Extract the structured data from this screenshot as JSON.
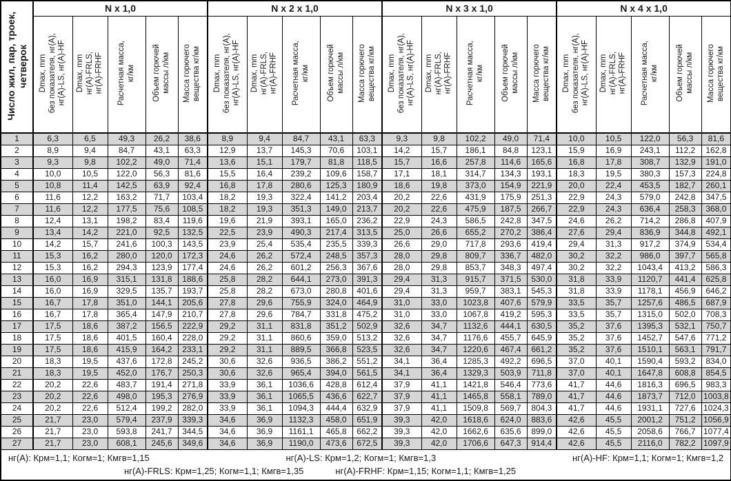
{
  "table": {
    "row_header": "Число жил, пар, троек,\nчетверок",
    "groups": [
      "N x 1,0",
      "N x 2 x 1,0",
      "N x 3 x 1,0",
      "N x 4 x 1,0"
    ],
    "sub_headers": [
      "Dmax, mm\nбез показателя, нг(А),\nнг(А)-LS, нг(А)-HF",
      "Dmax, mm\nнг(А)-FRLS,\nнг(А)-FRHF",
      "Расчетная масса,\nкг/км",
      "Объем горючей\nмассы л/км",
      "Масса горючего\nвещества кг/км"
    ],
    "rows": [
      [
        "1",
        "6,3",
        "6,5",
        "49,3",
        "26,2",
        "38,6",
        "8,9",
        "9,4",
        "84,7",
        "43,1",
        "63,3",
        "9,3",
        "9,8",
        "102,2",
        "49,0",
        "71,4",
        "10,0",
        "10,5",
        "122,0",
        "56,3",
        "81,6"
      ],
      [
        "2",
        "8,9",
        "9,4",
        "84,7",
        "43,1",
        "63,3",
        "12,9",
        "13,7",
        "145,3",
        "70,6",
        "103,1",
        "14,2",
        "15,7",
        "186,1",
        "84,8",
        "123,1",
        "15,9",
        "16,9",
        "243,1",
        "112,2",
        "162,8"
      ],
      [
        "3",
        "9,3",
        "9,8",
        "102,2",
        "49,0",
        "71,4",
        "13,6",
        "15,1",
        "179,7",
        "81,8",
        "118,5",
        "15,7",
        "16,6",
        "257,8",
        "114,6",
        "165,6",
        "16,8",
        "17,8",
        "308,7",
        "132,9",
        "191,0"
      ],
      [
        "4",
        "10,0",
        "10,5",
        "122,0",
        "56,3",
        "81,6",
        "15,5",
        "16,4",
        "239,2",
        "109,6",
        "158,7",
        "17,1",
        "18,1",
        "314,7",
        "134,3",
        "193,1",
        "18,3",
        "19,5",
        "380,3",
        "157,3",
        "224,8"
      ],
      [
        "5",
        "10,8",
        "11,4",
        "142,5",
        "63,9",
        "92,4",
        "16,8",
        "17,8",
        "280,6",
        "125,3",
        "180,9",
        "18,6",
        "19,8",
        "373,0",
        "154,9",
        "221,9",
        "20,0",
        "22,4",
        "453,5",
        "182,7",
        "260,1"
      ],
      [
        "6",
        "11,6",
        "12,2",
        "163,2",
        "71,7",
        "103,4",
        "18,2",
        "19,3",
        "322,4",
        "141,2",
        "203,4",
        "20,2",
        "22,6",
        "431,9",
        "175,9",
        "251,3",
        "22,9",
        "24,3",
        "579,0",
        "242,8",
        "347,5"
      ],
      [
        "7",
        "11,6",
        "12,2",
        "177,5",
        "75,6",
        "108,5",
        "18,2",
        "19,3",
        "351,3",
        "149,0",
        "213,7",
        "20,2",
        "22,6",
        "475,9",
        "187,5",
        "266,7",
        "22,9",
        "24,3",
        "636,4",
        "258,3",
        "368,0"
      ],
      [
        "8",
        "12,4",
        "13,1",
        "198,2",
        "83,4",
        "119,6",
        "19,6",
        "21,9",
        "393,1",
        "165,0",
        "236,2",
        "22,9",
        "24,3",
        "586,5",
        "242,8",
        "347,5",
        "24,6",
        "26,2",
        "714,2",
        "286,8",
        "407,9"
      ],
      [
        "9",
        "13,4",
        "14,2",
        "221,0",
        "92,5",
        "132,5",
        "22,5",
        "23,9",
        "490,3",
        "217,4",
        "313,5",
        "25,0",
        "26,6",
        "655,2",
        "270,2",
        "386,4",
        "27,6",
        "29,4",
        "836,9",
        "344,8",
        "492,1"
      ],
      [
        "10",
        "14,2",
        "15,7",
        "241,6",
        "100,3",
        "143,5",
        "23,9",
        "25,4",
        "535,4",
        "235,5",
        "339,3",
        "26,6",
        "29,0",
        "717,8",
        "293,6",
        "419,4",
        "29,4",
        "31,3",
        "917,2",
        "374,9",
        "534,4"
      ],
      [
        "11",
        "15,3",
        "16,2",
        "280,0",
        "120,0",
        "172,3",
        "24,6",
        "26,2",
        "572,4",
        "248,5",
        "357,3",
        "28,0",
        "29,8",
        "809,7",
        "336,7",
        "482,0",
        "30,2",
        "32,2",
        "986,0",
        "397,7",
        "565,8"
      ],
      [
        "12",
        "15,3",
        "16,2",
        "294,3",
        "123,9",
        "177,4",
        "24,6",
        "26,2",
        "601,2",
        "256,3",
        "367,6",
        "28,0",
        "29,8",
        "853,7",
        "348,3",
        "497,4",
        "30,2",
        "32,2",
        "1043,4",
        "413,2",
        "586,3"
      ],
      [
        "13",
        "16,0",
        "16,9",
        "315,1",
        "131,8",
        "188,6",
        "25,8",
        "28,2",
        "644,1",
        "273,0",
        "391,3",
        "29,4",
        "31,3",
        "915,7",
        "371,5",
        "530,0",
        "31,8",
        "33,9",
        "1120,7",
        "441,4",
        "625,8"
      ],
      [
        "14",
        "16,0",
        "16,9",
        "329,5",
        "135,7",
        "193,7",
        "25,8",
        "28,2",
        "673,0",
        "280,8",
        "401,6",
        "29,4",
        "31,3",
        "959,7",
        "383,1",
        "545,3",
        "31,8",
        "33,9",
        "1178,1",
        "456,9",
        "646,2"
      ],
      [
        "15",
        "16,7",
        "17,8",
        "351,0",
        "144,1",
        "205,6",
        "27,8",
        "29,6",
        "755,9",
        "324,0",
        "464,9",
        "31,0",
        "33,0",
        "1023,8",
        "407,6",
        "579,9",
        "33,5",
        "35,7",
        "1257,6",
        "486,5",
        "687,9"
      ],
      [
        "16",
        "16,7",
        "17,8",
        "365,4",
        "147,9",
        "210,7",
        "27,8",
        "29,6",
        "784,7",
        "331,8",
        "475,2",
        "31,0",
        "33,0",
        "1067,8",
        "419,2",
        "595,3",
        "33,5",
        "35,7",
        "1315,0",
        "502,0",
        "708,3"
      ],
      [
        "17",
        "17,5",
        "18,6",
        "387,2",
        "156,5",
        "222,9",
        "29,2",
        "31,1",
        "831,8",
        "351,2",
        "502,9",
        "32,6",
        "34,7",
        "1132,6",
        "444,1",
        "630,5",
        "35,2",
        "37,6",
        "1395,3",
        "532,1",
        "750,7"
      ],
      [
        "18",
        "17,5",
        "18,6",
        "401,5",
        "160,4",
        "228,0",
        "29,2",
        "31,1",
        "860,6",
        "359,0",
        "513,2",
        "32,6",
        "34,7",
        "1176,6",
        "455,7",
        "645,9",
        "35,2",
        "37,6",
        "1452,7",
        "547,6",
        "771,2"
      ],
      [
        "19",
        "17,5",
        "18,6",
        "415,9",
        "164,2",
        "233,1",
        "29,2",
        "31,1",
        "889,5",
        "366,8",
        "523,5",
        "32,6",
        "34,7",
        "1220,6",
        "467,4",
        "661,2",
        "35,2",
        "37,6",
        "1510,1",
        "563,1",
        "791,7"
      ],
      [
        "20",
        "18,3",
        "19,5",
        "437,6",
        "172,8",
        "245,2",
        "30,6",
        "32,6",
        "936,5",
        "386,2",
        "551,2",
        "34,1",
        "36,4",
        "1285,3",
        "492,2",
        "696,5",
        "37,0",
        "40,1",
        "1590,4",
        "593,2",
        "834,0"
      ],
      [
        "21",
        "18,3",
        "19,5",
        "452,0",
        "176,7",
        "250,3",
        "30,6",
        "32,6",
        "965,4",
        "394,0",
        "561,5",
        "34,1",
        "36,4",
        "1329,3",
        "503,9",
        "711,8",
        "37,0",
        "40,1",
        "1647,8",
        "608,8",
        "854,5"
      ],
      [
        "22",
        "20,2",
        "22,6",
        "483,7",
        "191,4",
        "271,8",
        "33,9",
        "36,1",
        "1036,6",
        "428,8",
        "612,4",
        "37,9",
        "41,1",
        "1421,8",
        "546,4",
        "773,6",
        "41,7",
        "44,6",
        "1816,3",
        "696,5",
        "983,3"
      ],
      [
        "23",
        "20,2",
        "22,6",
        "498,0",
        "195,3",
        "276,9",
        "33,9",
        "36,1",
        "1065,5",
        "436,6",
        "622,7",
        "37,9",
        "41,1",
        "1465,8",
        "558,1",
        "789,0",
        "41,7",
        "44,6",
        "1873,7",
        "712,0",
        "1003,8"
      ],
      [
        "24",
        "20,2",
        "22,6",
        "512,4",
        "199,2",
        "282,0",
        "33,9",
        "36,1",
        "1094,3",
        "444,4",
        "632,9",
        "37,9",
        "41,1",
        "1509,8",
        "569,7",
        "804,3",
        "41,7",
        "44,6",
        "1931,1",
        "727,6",
        "1024,3"
      ],
      [
        "25",
        "21,7",
        "23,0",
        "579,4",
        "237,9",
        "339,3",
        "34,6",
        "36,9",
        "1132,3",
        "458,0",
        "651,9",
        "39,3",
        "42,0",
        "1618,6",
        "624,0",
        "883,6",
        "42,6",
        "45,5",
        "2001,2",
        "751,2",
        "1056,9"
      ],
      [
        "26",
        "21,7",
        "23,0",
        "593,8",
        "241,7",
        "344,5",
        "34,6",
        "36,9",
        "1161,1",
        "465,8",
        "662,2",
        "39,3",
        "42,0",
        "1662,6",
        "635,6",
        "899,0",
        "42,6",
        "45,5",
        "2058,6",
        "766,7",
        "1077,4"
      ],
      [
        "27",
        "21,7",
        "23,0",
        "608,1",
        "245,6",
        "349,6",
        "34,6",
        "36,9",
        "1190,0",
        "473,6",
        "672,5",
        "39,3",
        "42,0",
        "1706,6",
        "647,3",
        "914,4",
        "42,6",
        "45,5",
        "2116,0",
        "782,2",
        "1097,9"
      ]
    ]
  },
  "footer": {
    "line1": [
      "нг(А): Крм=1,1;  Когм=1;  Кмгв=1,15",
      "нг(А)-LS: Крм=1,2;  Когм=1;  Кмгв=1,3",
      "нг(А)-HF: Крм=1,1;  Когм=1;  Кмгв=1,2"
    ],
    "line2": [
      "нг(А)-FRLS: Крм=1,25;  Когм=1,1;  Кмгв=1,35",
      "нг(А)-FRHF: Крм=1,15;  Когм=1,1;  Кмгв=1,25"
    ]
  },
  "colors": {
    "row_stripe": "#d6d6d6",
    "border": "#000000",
    "background": "#ffffff"
  }
}
